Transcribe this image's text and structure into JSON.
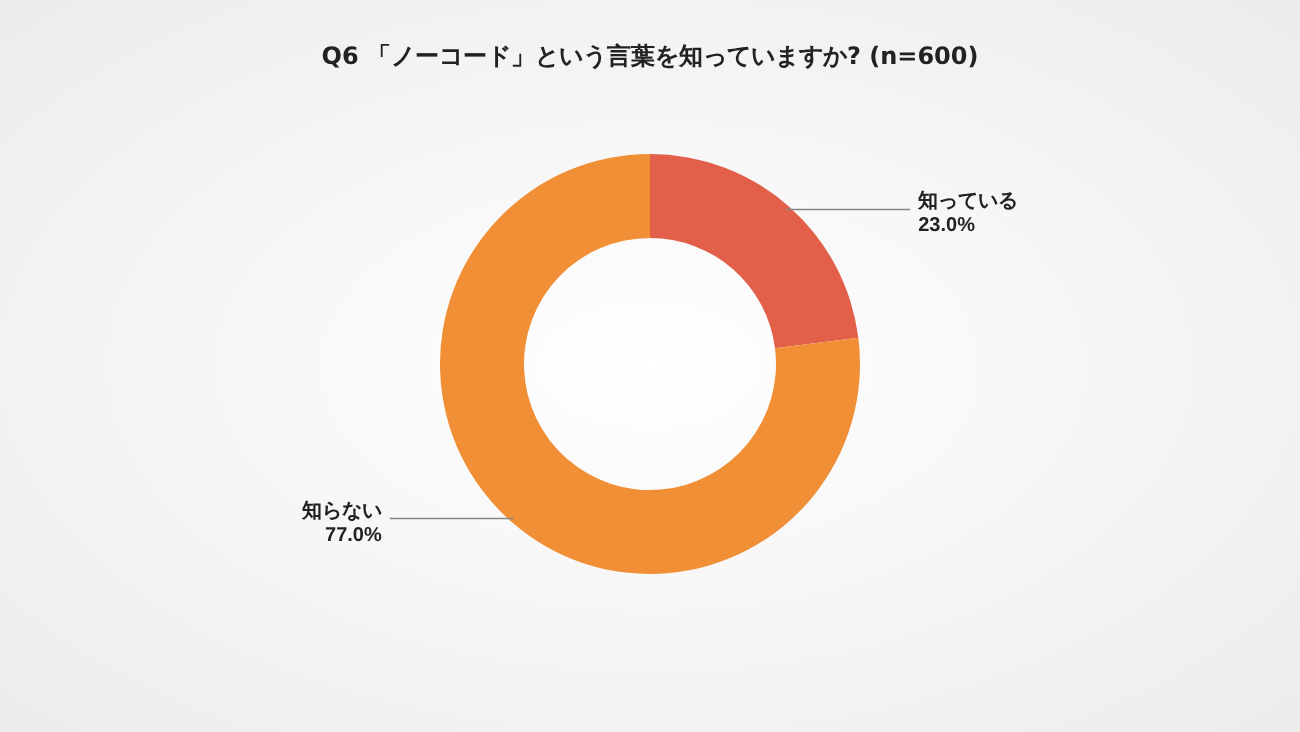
{
  "chart_data": {
    "type": "donut",
    "title": "Q6 「ノーコード」という言葉を知っていますか? (n=600)",
    "categories": [
      "知っている",
      "知らない"
    ],
    "values": [
      23.0,
      77.0
    ],
    "colors": [
      "#e2604a",
      "#f08f36"
    ],
    "value_labels": [
      "23.0%",
      "77.0%"
    ]
  }
}
